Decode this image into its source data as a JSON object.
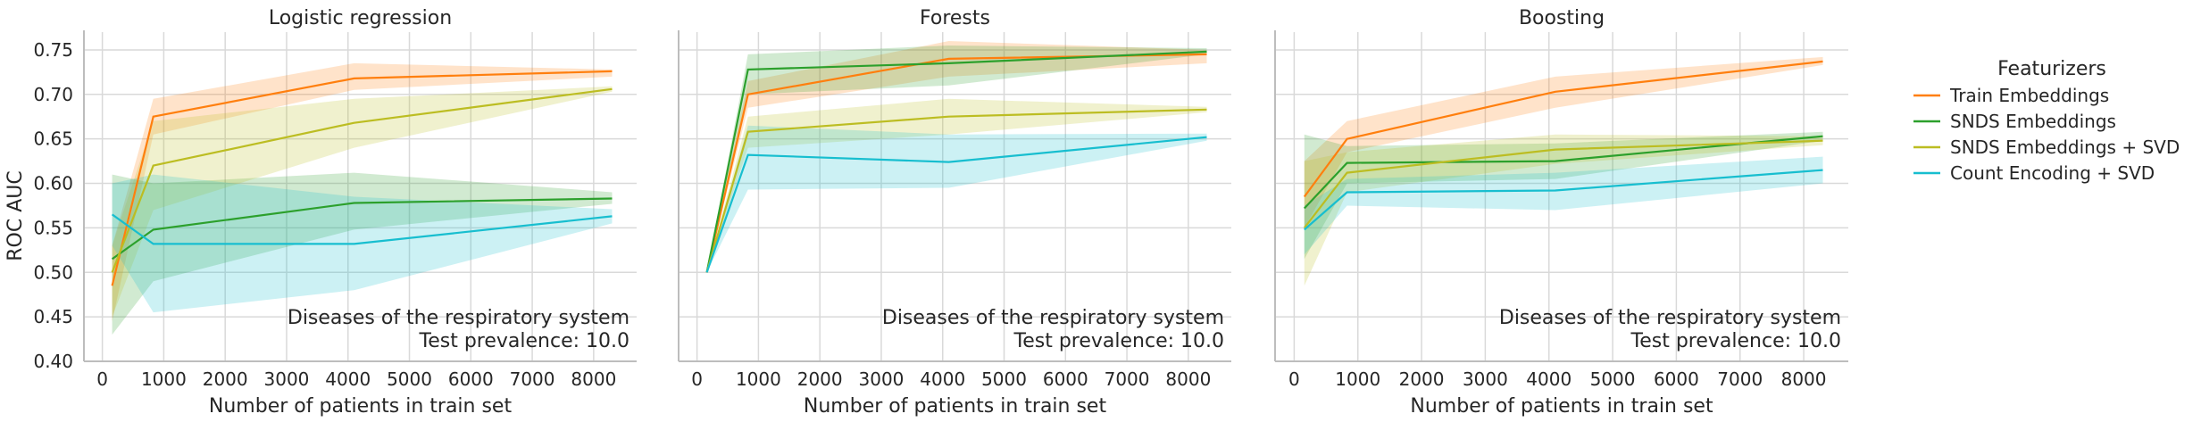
{
  "figure": {
    "shared_ylabel": "ROC AUC",
    "legend_title": "Featurizers",
    "legend_placement": "right-outside"
  },
  "series_styles": [
    {
      "name": "Train Embeddings",
      "color": "#ff7f0e"
    },
    {
      "name": "SNDS Embeddings",
      "color": "#2ca02c"
    },
    {
      "name": "SNDS Embeddings + SVD",
      "color": "#bcbd22"
    },
    {
      "name": "Count Encoding + SVD",
      "color": "#17becf"
    }
  ],
  "chart_data": [
    {
      "type": "line",
      "title": "Logistic regression",
      "xlabel": "Number of patients in train set",
      "ylabel": "ROC AUC",
      "annotation": [
        "Diseases of the respiratory system",
        "Test prevalence: 10.0"
      ],
      "xlim": [
        -300,
        8700
      ],
      "ylim": [
        0.4,
        0.77
      ],
      "xticks": [
        0,
        1000,
        2000,
        3000,
        4000,
        5000,
        6000,
        7000,
        8000
      ],
      "yticks": [
        0.4,
        0.45,
        0.5,
        0.55,
        0.6,
        0.65,
        0.7,
        0.75
      ],
      "grid": true,
      "x": [
        160,
        830,
        4100,
        8300
      ],
      "series": [
        {
          "name": "Train Embeddings",
          "values": [
            0.485,
            0.675,
            0.718,
            0.726
          ],
          "lower": [
            0.445,
            0.655,
            0.705,
            0.72
          ],
          "upper": [
            0.53,
            0.695,
            0.735,
            0.728
          ]
        },
        {
          "name": "SNDS Embeddings",
          "values": [
            0.515,
            0.548,
            0.578,
            0.583
          ],
          "lower": [
            0.43,
            0.49,
            0.548,
            0.577
          ],
          "upper": [
            0.61,
            0.6,
            0.612,
            0.59
          ]
        },
        {
          "name": "SNDS Embeddings + SVD",
          "values": [
            0.5,
            0.62,
            0.668,
            0.706
          ],
          "lower": [
            0.45,
            0.57,
            0.64,
            0.703
          ],
          "upper": [
            0.53,
            0.67,
            0.695,
            0.709
          ]
        },
        {
          "name": "Count Encoding + SVD",
          "values": [
            0.565,
            0.532,
            0.532,
            0.563
          ],
          "lower": [
            0.53,
            0.455,
            0.48,
            0.555
          ],
          "upper": [
            0.6,
            0.61,
            0.585,
            0.571
          ]
        }
      ]
    },
    {
      "type": "line",
      "title": "Forests",
      "xlabel": "Number of patients in train set",
      "ylabel": "",
      "annotation": [
        "Diseases of the respiratory system",
        "Test prevalence: 10.0"
      ],
      "xlim": [
        -300,
        8700
      ],
      "ylim": [
        0.4,
        0.77
      ],
      "xticks": [
        0,
        1000,
        2000,
        3000,
        4000,
        5000,
        6000,
        7000,
        8000
      ],
      "yticks": [
        0.4,
        0.45,
        0.5,
        0.55,
        0.6,
        0.65,
        0.7,
        0.75
      ],
      "grid": true,
      "x": [
        160,
        830,
        4100,
        8300
      ],
      "series": [
        {
          "name": "Train Embeddings",
          "values": [
            0.5,
            0.7,
            0.74,
            0.745
          ],
          "lower": [
            0.5,
            0.685,
            0.72,
            0.735
          ],
          "upper": [
            0.5,
            0.715,
            0.76,
            0.75
          ]
        },
        {
          "name": "SNDS Embeddings",
          "values": [
            0.5,
            0.728,
            0.735,
            0.748
          ],
          "lower": [
            0.5,
            0.7,
            0.71,
            0.745
          ],
          "upper": [
            0.5,
            0.745,
            0.755,
            0.752
          ]
        },
        {
          "name": "SNDS Embeddings + SVD",
          "values": [
            0.5,
            0.658,
            0.675,
            0.683
          ],
          "lower": [
            0.5,
            0.64,
            0.655,
            0.68
          ],
          "upper": [
            0.5,
            0.675,
            0.695,
            0.686
          ]
        },
        {
          "name": "Count Encoding + SVD",
          "values": [
            0.5,
            0.632,
            0.624,
            0.652
          ],
          "lower": [
            0.5,
            0.593,
            0.595,
            0.648
          ],
          "upper": [
            0.5,
            0.665,
            0.655,
            0.656
          ]
        }
      ]
    },
    {
      "type": "line",
      "title": "Boosting",
      "xlabel": "Number of patients in train set",
      "ylabel": "",
      "annotation": [
        "Diseases of the respiratory system",
        "Test prevalence: 10.0"
      ],
      "xlim": [
        -300,
        8700
      ],
      "ylim": [
        0.4,
        0.77
      ],
      "xticks": [
        0,
        1000,
        2000,
        3000,
        4000,
        5000,
        6000,
        7000,
        8000
      ],
      "yticks": [
        0.4,
        0.45,
        0.5,
        0.55,
        0.6,
        0.65,
        0.7,
        0.75
      ],
      "grid": true,
      "x": [
        160,
        830,
        4100,
        8300
      ],
      "series": [
        {
          "name": "Train Embeddings",
          "values": [
            0.585,
            0.65,
            0.703,
            0.737
          ],
          "lower": [
            0.55,
            0.635,
            0.685,
            0.733
          ],
          "upper": [
            0.625,
            0.67,
            0.72,
            0.742
          ]
        },
        {
          "name": "SNDS Embeddings",
          "values": [
            0.572,
            0.623,
            0.625,
            0.653
          ],
          "lower": [
            0.515,
            0.6,
            0.605,
            0.648
          ],
          "upper": [
            0.655,
            0.642,
            0.645,
            0.658
          ]
        },
        {
          "name": "SNDS Embeddings + SVD",
          "values": [
            0.55,
            0.612,
            0.638,
            0.648
          ],
          "lower": [
            0.485,
            0.59,
            0.622,
            0.643
          ],
          "upper": [
            0.625,
            0.635,
            0.655,
            0.653
          ]
        },
        {
          "name": "Count Encoding + SVD",
          "values": [
            0.548,
            0.59,
            0.592,
            0.615
          ],
          "lower": [
            0.52,
            0.575,
            0.57,
            0.6
          ],
          "upper": [
            0.575,
            0.605,
            0.612,
            0.63
          ]
        }
      ]
    }
  ]
}
